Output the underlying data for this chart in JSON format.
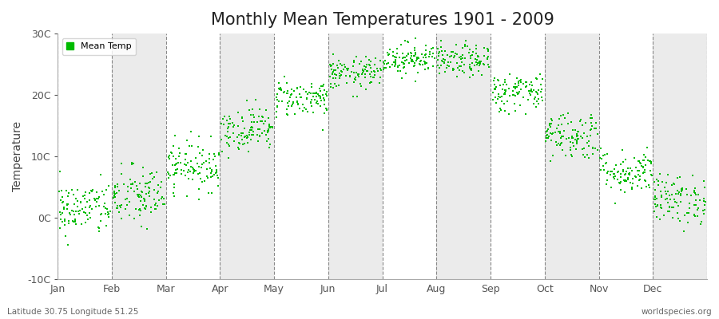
{
  "title": "Monthly Mean Temperatures 1901 - 2009",
  "ylabel": "Temperature",
  "ylim": [
    -10,
    30
  ],
  "yticks": [
    -10,
    0,
    10,
    20,
    30
  ],
  "ytick_labels": [
    "-10C",
    "0C",
    "10C",
    "20C",
    "30C"
  ],
  "months": [
    "Jan",
    "Feb",
    "Mar",
    "Apr",
    "May",
    "Jun",
    "Jul",
    "Aug",
    "Sep",
    "Oct",
    "Nov",
    "Dec"
  ],
  "month_means": [
    1.5,
    3.5,
    8.5,
    14.5,
    19.5,
    23.5,
    26.0,
    25.5,
    20.5,
    13.5,
    7.5,
    3.0
  ],
  "month_stds": [
    2.2,
    2.5,
    2.0,
    1.8,
    1.5,
    1.3,
    1.3,
    1.3,
    1.6,
    2.0,
    1.8,
    2.0
  ],
  "n_years": 109,
  "dot_color": "#00BB00",
  "dot_size": 3,
  "plot_bg_light": "#FFFFFF",
  "plot_bg_dark": "#EBEBEB",
  "fig_bg_color": "#FFFFFF",
  "grid_color": "#888888",
  "title_fontsize": 15,
  "axis_label_fontsize": 10,
  "tick_fontsize": 9,
  "legend_label": "Mean Temp",
  "bottom_left_text": "Latitude 30.75 Longitude 51.25",
  "bottom_right_text": "worldspecies.org",
  "seed": 42
}
